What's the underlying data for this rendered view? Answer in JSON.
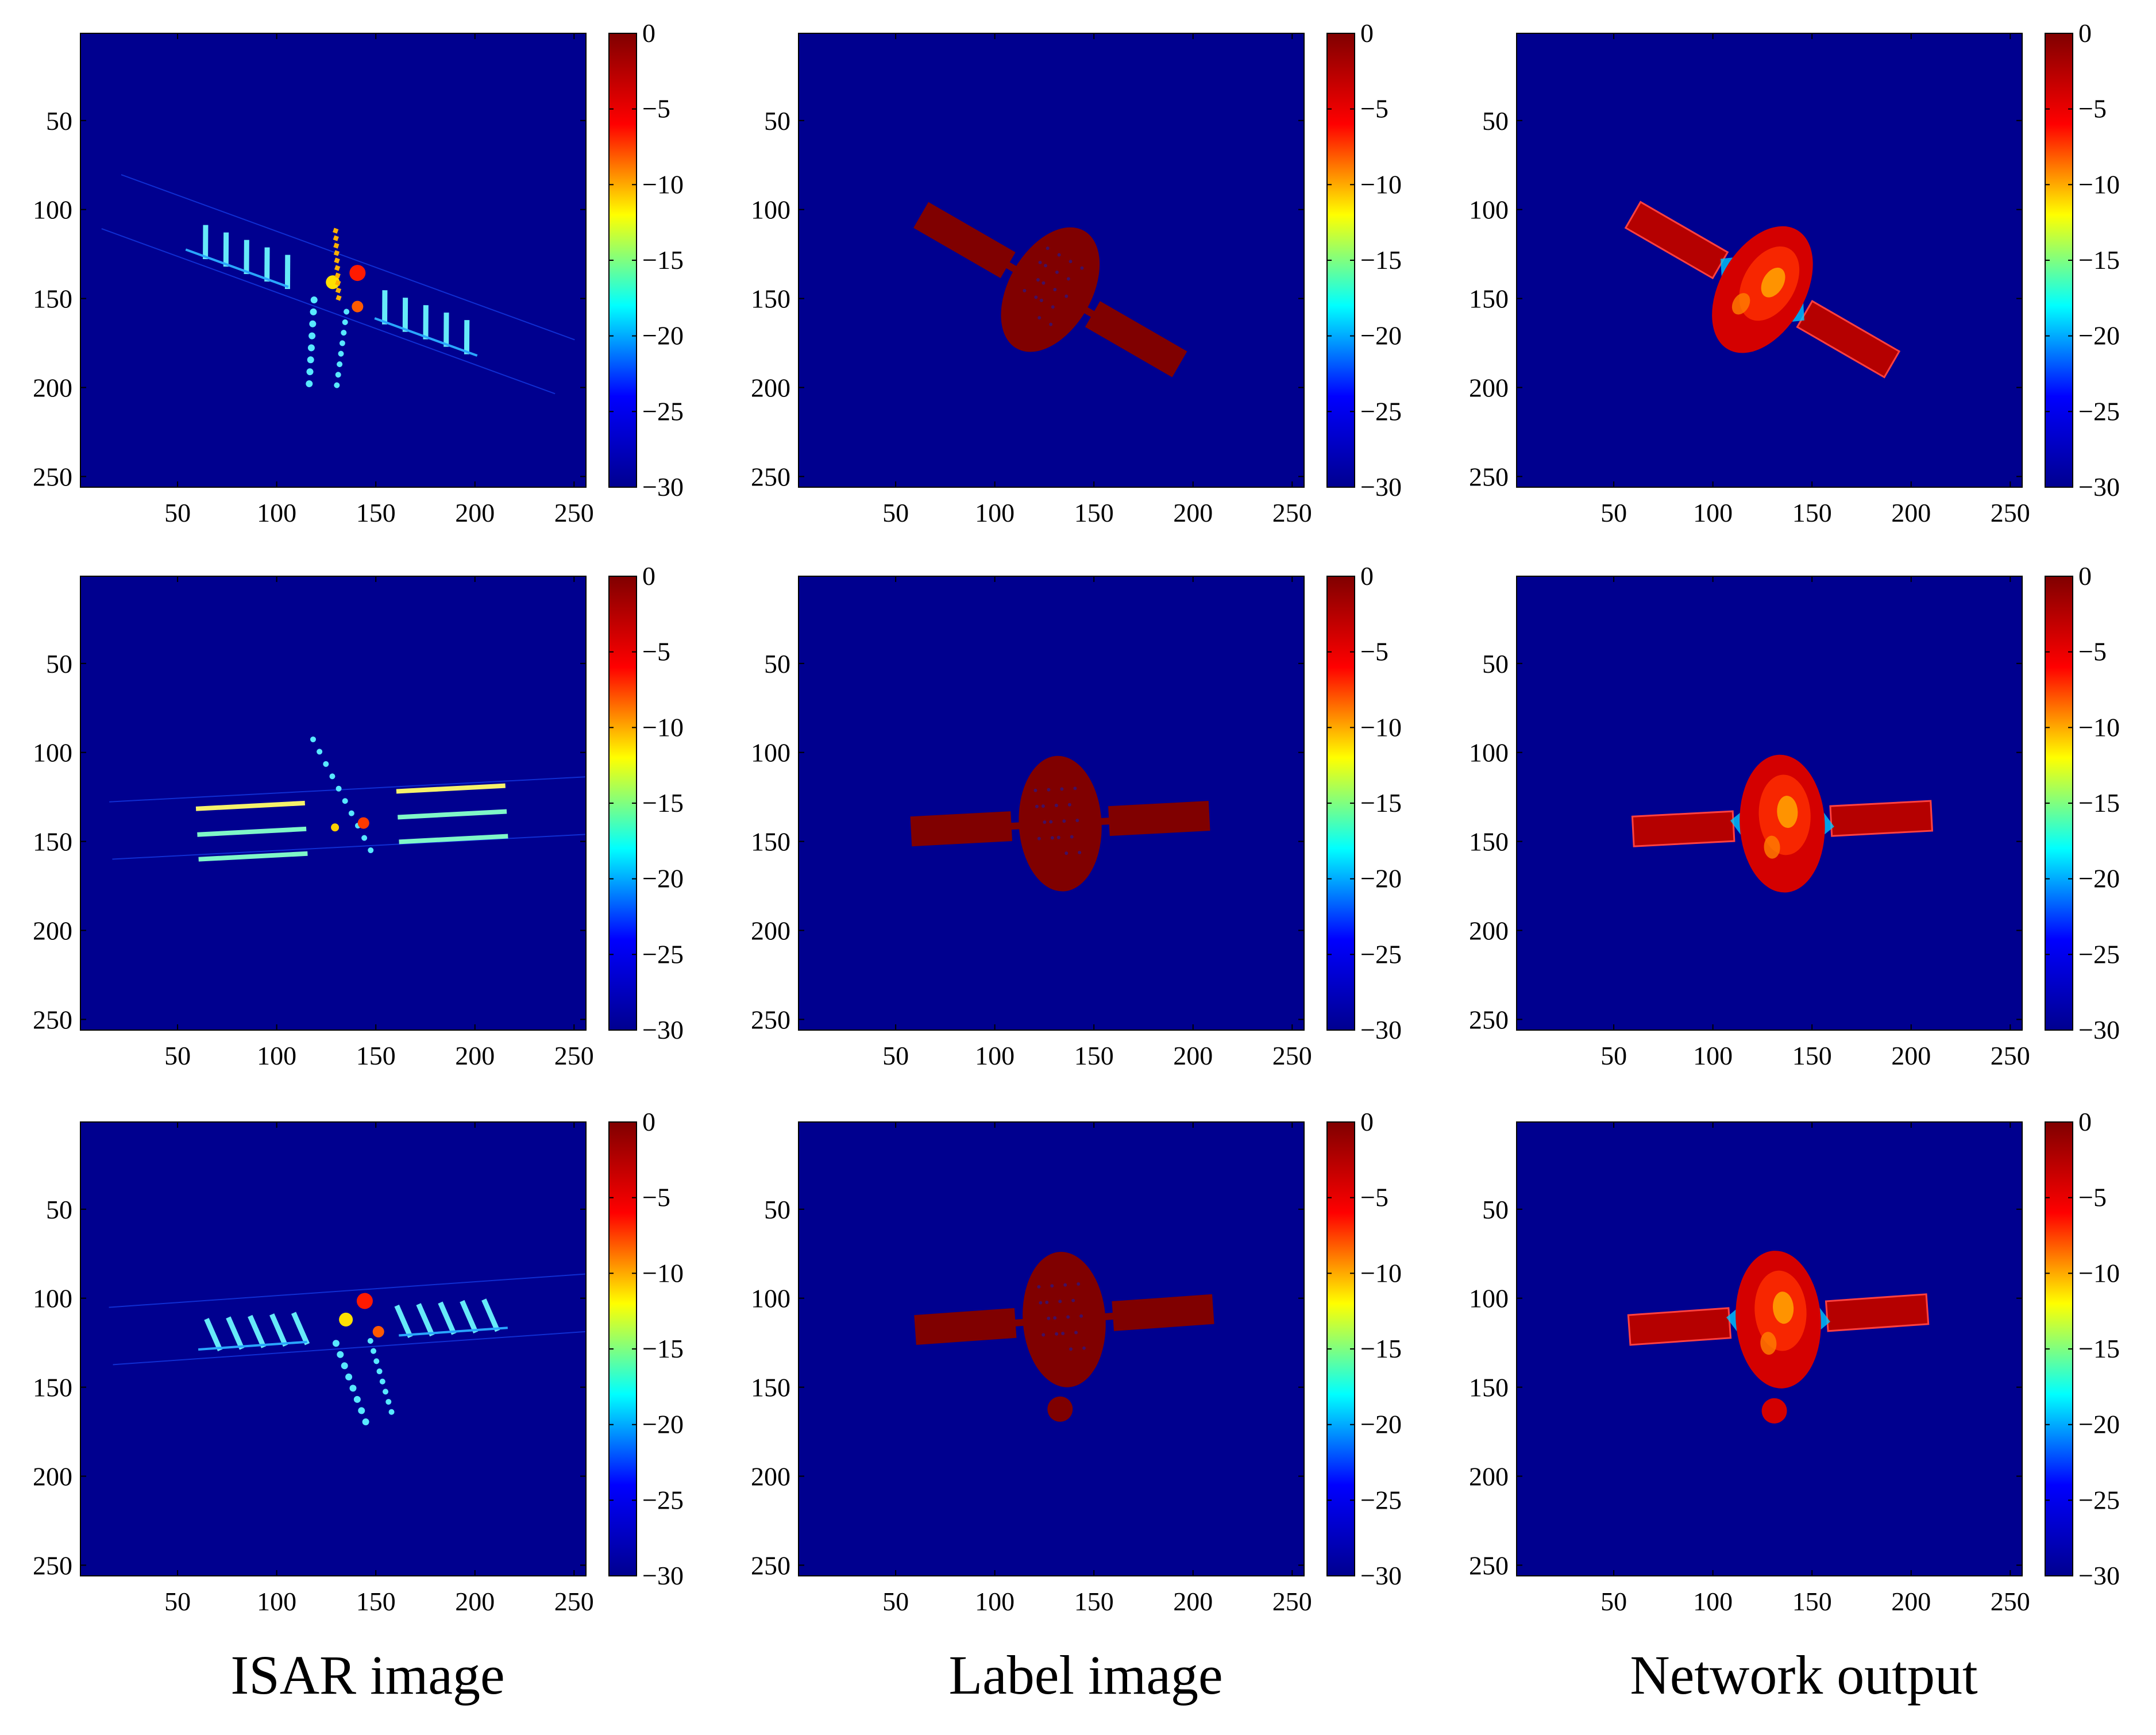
{
  "columns": [
    "ISAR image",
    "Label image",
    "Network output"
  ],
  "chart_data": {
    "type": "heatmap",
    "layout": "3 rows x 3 columns",
    "x_ticks": [
      50,
      100,
      150,
      200,
      250
    ],
    "y_ticks": [
      50,
      100,
      150,
      200,
      250
    ],
    "xlim": [
      1,
      256
    ],
    "ylim": [
      256,
      1
    ],
    "colorbar": {
      "ticks": [
        0,
        -5,
        -10,
        -15,
        -20,
        -25,
        -30
      ],
      "range": [
        -30,
        0
      ],
      "colormap": "jet",
      "colors": [
        "#00008f",
        "#0000ff",
        "#00ffff",
        "#ffff00",
        "#ff0000",
        "#800000"
      ]
    },
    "background_value": -30,
    "panels": [
      {
        "row": 1,
        "column": "ISAR image",
        "content": "scatterers",
        "rotation_deg": 20,
        "center": [
          130,
          145
        ]
      },
      {
        "row": 1,
        "column": "Label image",
        "content": "mask",
        "rotation_deg": 30,
        "center": [
          128,
          145
        ]
      },
      {
        "row": 1,
        "column": "Network output",
        "content": "prediction",
        "rotation_deg": 30,
        "center": [
          125,
          145
        ]
      },
      {
        "row": 2,
        "column": "ISAR image",
        "content": "scatterers",
        "rotation_deg": -3,
        "center": [
          138,
          140
        ]
      },
      {
        "row": 2,
        "column": "Label image",
        "content": "mask",
        "rotation_deg": -3,
        "center": [
          133,
          140
        ]
      },
      {
        "row": 2,
        "column": "Network output",
        "content": "prediction",
        "rotation_deg": -3,
        "center": [
          135,
          140
        ]
      },
      {
        "row": 3,
        "column": "ISAR image",
        "content": "scatterers",
        "rotation_deg": -4,
        "center": [
          138,
          115
        ]
      },
      {
        "row": 3,
        "column": "Label image",
        "content": "mask",
        "rotation_deg": -4,
        "center": [
          135,
          112
        ]
      },
      {
        "row": 3,
        "column": "Network output",
        "content": "prediction",
        "rotation_deg": -4,
        "center": [
          133,
          112
        ]
      }
    ]
  }
}
